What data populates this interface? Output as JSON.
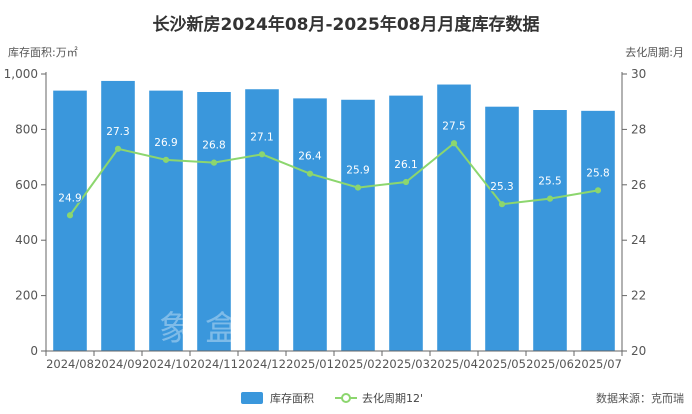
{
  "chart_data": {
    "type": "bar",
    "title": "长沙新房2024年08月-2025年08月月度库存数据",
    "y_left_label": "库存面积:万㎡",
    "y_right_label": "去化周期:月",
    "categories": [
      "2024/08",
      "2024/09",
      "2024/10",
      "2024/11",
      "2024/12",
      "2025/01",
      "2025/02",
      "2025/03",
      "2025/04",
      "2025/05",
      "2025/06",
      "2025/07"
    ],
    "y_left_ticks": [
      "0",
      "200",
      "400",
      "600",
      "800",
      "1,000"
    ],
    "y_right_ticks": [
      "20",
      "22",
      "24",
      "26",
      "28",
      "30"
    ],
    "ylim_left": [
      0,
      1000
    ],
    "ylim_right": [
      20,
      30
    ],
    "series": [
      {
        "name": "库存面积",
        "type": "bar",
        "axis": "left",
        "color": "#3a97dc",
        "values": [
          940,
          975,
          940,
          935,
          945,
          912,
          907,
          922,
          962,
          882,
          870,
          867
        ]
      },
      {
        "name": "去化周期12'",
        "type": "line",
        "axis": "right",
        "color": "#8cd66e",
        "values": [
          24.9,
          27.3,
          26.9,
          26.8,
          27.1,
          26.4,
          25.9,
          26.1,
          27.5,
          25.3,
          25.5,
          25.8
        ],
        "labels": [
          "24.9",
          "27.3",
          "26.9",
          "26.8",
          "27.1",
          "26.4",
          "25.9",
          "26.1",
          "27.5",
          "25.3",
          "25.5",
          "25.8"
        ]
      }
    ],
    "legend": {
      "position": "bottom-center",
      "bar_label": "库存面积",
      "line_label": "去化周期12'"
    },
    "grid": false
  },
  "source": "数据来源：克而瑞",
  "watermark": "象盒"
}
